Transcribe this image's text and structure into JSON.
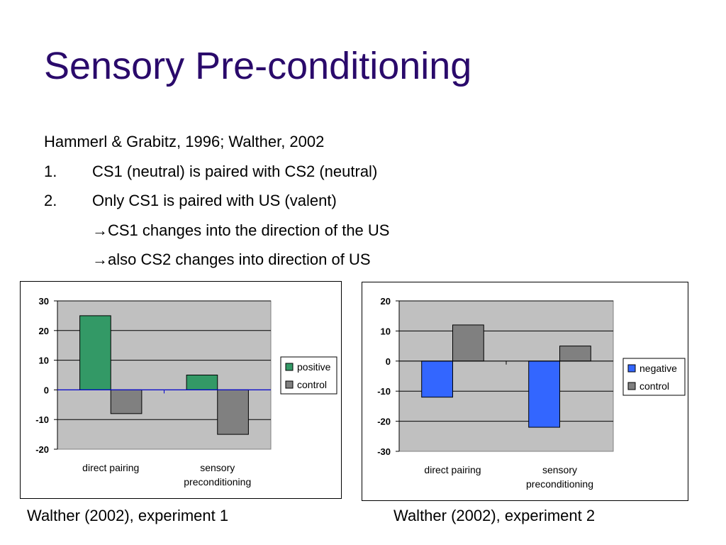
{
  "slide": {
    "title": "Sensory Pre-conditioning",
    "reference": "Hammerl & Grabitz, 1996; Walther, 2002",
    "steps": [
      {
        "num": "1.",
        "text": "CS1 (neutral) is paired with CS2 (neutral)"
      },
      {
        "num": "2.",
        "text": "Only CS1 is paired with US (valent)"
      }
    ],
    "arrow_icon": "→",
    "bullets": [
      "CS1 changes into the direction of the US",
      "also CS2 changes into direction of US"
    ],
    "captions": [
      "Walther (2002), experiment 1",
      "Walther (2002), experiment 2"
    ]
  },
  "colors": {
    "title": "#2a0a6b",
    "plot_bg": "#c0c0c0",
    "positive": "#339966",
    "negative": "#3366ff",
    "control": "#808080"
  },
  "chart_data": [
    {
      "type": "bar",
      "categories": [
        "direct pairing",
        "sensory preconditioning"
      ],
      "category_lines": [
        [
          "direct pairing"
        ],
        [
          "sensory",
          "preconditioning"
        ]
      ],
      "series": [
        {
          "name": "positive",
          "values": [
            25,
            5
          ],
          "color": "#339966"
        },
        {
          "name": "control",
          "values": [
            -8,
            -15
          ],
          "color": "#808080"
        }
      ],
      "ylim": [
        -20,
        30
      ],
      "yticks": [
        -20,
        -10,
        0,
        10,
        20,
        30
      ],
      "grid": true,
      "legend": "right",
      "zero_line_color": "#0000cc"
    },
    {
      "type": "bar",
      "categories": [
        "direct pairing",
        "sensory preconditioning"
      ],
      "category_lines": [
        [
          "direct pairing"
        ],
        [
          "sensory",
          "preconditioning"
        ]
      ],
      "series": [
        {
          "name": "negative",
          "values": [
            -12,
            -22
          ],
          "color": "#3366ff"
        },
        {
          "name": "control",
          "values": [
            12,
            5
          ],
          "color": "#808080"
        }
      ],
      "ylim": [
        -30,
        20
      ],
      "yticks": [
        -30,
        -20,
        -10,
        0,
        10,
        20
      ],
      "grid": true,
      "legend": "right",
      "zero_line_color": "#000000"
    }
  ]
}
